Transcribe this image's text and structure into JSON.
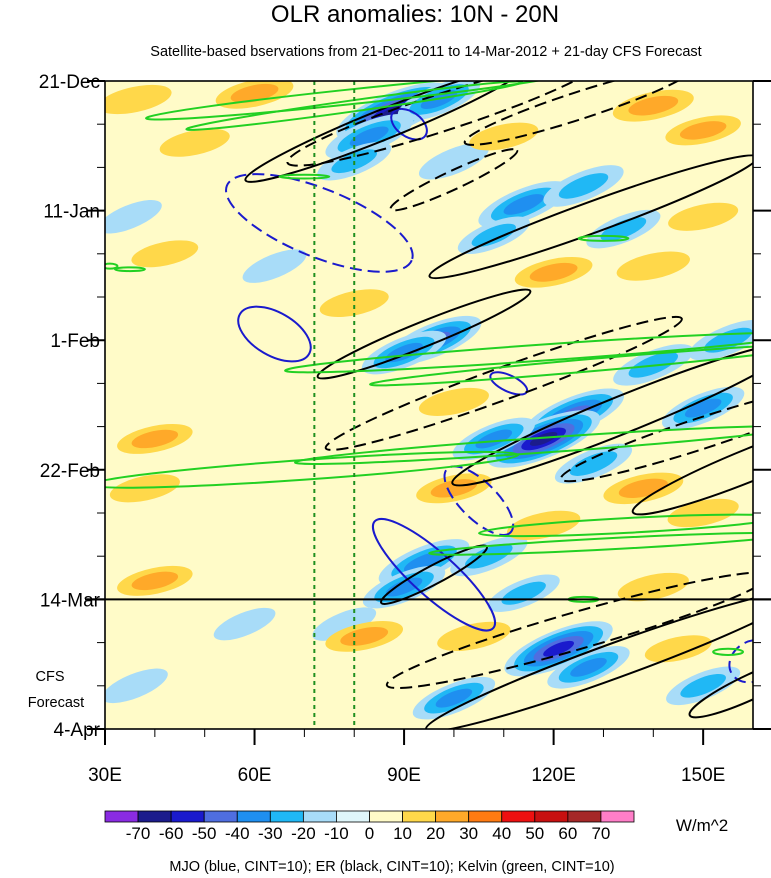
{
  "chart_data": {
    "type": "heatmap",
    "title": "OLR anomalies: 10N - 20N",
    "subtitle": "Satellite-based bservations from 21-Dec-2011 to 14-Mar-2012 + 21-day CFS Forecast",
    "xlabel": "",
    "ylabel": "",
    "x_range": [
      30,
      160
    ],
    "y_range_days": [
      0,
      105
    ],
    "observation_end_day": 84,
    "x_ticks": [
      {
        "lon": 30,
        "label": "30E"
      },
      {
        "lon": 60,
        "label": "60E"
      },
      {
        "lon": 90,
        "label": "90E"
      },
      {
        "lon": 120,
        "label": "120E"
      },
      {
        "lon": 150,
        "label": "150E"
      }
    ],
    "y_ticks": [
      {
        "day": 0,
        "label": "21-Dec"
      },
      {
        "day": 21,
        "label": "11-Jan"
      },
      {
        "day": 42,
        "label": "1-Feb"
      },
      {
        "day": 63,
        "label": "22-Feb"
      },
      {
        "day": 84,
        "label": "14-Mar"
      },
      {
        "day": 105,
        "label": "4-Apr"
      }
    ],
    "forecast_label": [
      "CFS",
      "Forecast"
    ],
    "reference_longitudes": [
      72,
      80
    ],
    "colorbar": {
      "unit": "W/m^2",
      "levels": [
        -70,
        -60,
        -50,
        -40,
        -30,
        -20,
        -10,
        0,
        10,
        20,
        30,
        40,
        50,
        60,
        70
      ],
      "colors": [
        "#8a2be2",
        "#1c1c8c",
        "#1a1acd",
        "#4f6ee0",
        "#1f8ff0",
        "#20b8f5",
        "#a8dcf8",
        "#dff6fa",
        "#fffbc8",
        "#ffd84a",
        "#ffa929",
        "#ff7b12",
        "#ee1010",
        "#c81010",
        "#a52828",
        "#ff7ec8"
      ]
    },
    "anomaly_blobs": [
      {
        "lon": 88,
        "day": 5,
        "value": -62
      },
      {
        "lon": 83,
        "day": 9,
        "value": -35
      },
      {
        "lon": 97,
        "day": 3,
        "value": -30
      },
      {
        "lon": 80,
        "day": 13,
        "value": -22
      },
      {
        "lon": 100,
        "day": 13,
        "value": -18
      },
      {
        "lon": 114,
        "day": 20,
        "value": -38
      },
      {
        "lon": 126,
        "day": 17,
        "value": -28
      },
      {
        "lon": 134,
        "day": 24,
        "value": -22
      },
      {
        "lon": 108,
        "day": 25,
        "value": -20
      },
      {
        "lon": 96,
        "day": 42,
        "value": -42
      },
      {
        "lon": 90,
        "day": 44,
        "value": -32
      },
      {
        "lon": 140,
        "day": 46,
        "value": -28
      },
      {
        "lon": 155,
        "day": 42,
        "value": -26
      },
      {
        "lon": 124,
        "day": 54,
        "value": -48
      },
      {
        "lon": 118,
        "day": 58,
        "value": -60
      },
      {
        "lon": 108,
        "day": 58,
        "value": -30
      },
      {
        "lon": 150,
        "day": 53,
        "value": -30
      },
      {
        "lon": 128,
        "day": 62,
        "value": -25
      },
      {
        "lon": 94,
        "day": 78,
        "value": -38
      },
      {
        "lon": 90,
        "day": 82,
        "value": -30
      },
      {
        "lon": 107,
        "day": 77,
        "value": -25
      },
      {
        "lon": 114,
        "day": 83,
        "value": -20
      },
      {
        "lon": 121,
        "day": 92,
        "value": -55
      },
      {
        "lon": 127,
        "day": 95,
        "value": -30
      },
      {
        "lon": 100,
        "day": 100,
        "value": -30
      },
      {
        "lon": 64,
        "day": 30,
        "value": -12
      },
      {
        "lon": 35,
        "day": 22,
        "value": -12
      },
      {
        "lon": 58,
        "day": 88,
        "value": -10
      },
      {
        "lon": 36,
        "day": 98,
        "value": -14
      },
      {
        "lon": 78,
        "day": 88,
        "value": -12
      },
      {
        "lon": 150,
        "day": 98,
        "value": -22
      },
      {
        "lon": 60,
        "day": 2,
        "value": 22
      },
      {
        "lon": 36,
        "day": 3,
        "value": 18
      },
      {
        "lon": 48,
        "day": 10,
        "value": 15
      },
      {
        "lon": 140,
        "day": 4,
        "value": 25
      },
      {
        "lon": 150,
        "day": 8,
        "value": 20
      },
      {
        "lon": 110,
        "day": 9,
        "value": 14
      },
      {
        "lon": 120,
        "day": 31,
        "value": 22
      },
      {
        "lon": 140,
        "day": 30,
        "value": 18
      },
      {
        "lon": 150,
        "day": 22,
        "value": 15
      },
      {
        "lon": 42,
        "day": 28,
        "value": 12
      },
      {
        "lon": 40,
        "day": 58,
        "value": 20
      },
      {
        "lon": 38,
        "day": 66,
        "value": 15
      },
      {
        "lon": 138,
        "day": 66,
        "value": 24
      },
      {
        "lon": 150,
        "day": 70,
        "value": 16
      },
      {
        "lon": 100,
        "day": 66,
        "value": 20
      },
      {
        "lon": 118,
        "day": 72,
        "value": 18
      },
      {
        "lon": 140,
        "day": 82,
        "value": 16
      },
      {
        "lon": 40,
        "day": 81,
        "value": 20
      },
      {
        "lon": 82,
        "day": 90,
        "value": 22
      },
      {
        "lon": 104,
        "day": 90,
        "value": 18
      },
      {
        "lon": 145,
        "day": 92,
        "value": 12
      },
      {
        "lon": 80,
        "day": 36,
        "value": 14
      },
      {
        "lon": 100,
        "day": 52,
        "value": 15
      }
    ],
    "contours": {
      "mjo": [
        {
          "lon": 91,
          "day": 7,
          "rlon": 4,
          "rday": 2,
          "angle": 35,
          "dashed": false
        },
        {
          "lon": 73,
          "day": 23,
          "rlon": 20,
          "rday": 5.5,
          "angle": 22,
          "dashed": true
        },
        {
          "lon": 64,
          "day": 41,
          "rlon": 8,
          "rday": 3.5,
          "angle": 30,
          "dashed": false
        },
        {
          "lon": 111,
          "day": 49,
          "rlon": 4,
          "rday": 1.3,
          "angle": 25,
          "dashed": false
        },
        {
          "lon": 105,
          "day": 68,
          "rlon": 9,
          "rday": 3,
          "angle": 45,
          "dashed": true
        },
        {
          "lon": 96,
          "day": 80,
          "rlon": 16,
          "rday": 3.5,
          "angle": 42,
          "dashed": false
        },
        {
          "lon": 160,
          "day": 94,
          "rlon": 4,
          "rday": 4,
          "angle": 60,
          "dashed": true
        }
      ],
      "er": [
        {
          "lon": 98,
          "day": 5,
          "rlon": 33,
          "rday": 3,
          "angle": -18,
          "dashed": true
        },
        {
          "lon": 86,
          "day": 7,
          "rlon": 30,
          "rday": 2.4,
          "angle": -22,
          "dashed": false
        },
        {
          "lon": 125,
          "day": 4,
          "rlon": 24,
          "rday": 2.2,
          "angle": -18,
          "dashed": true
        },
        {
          "lon": 100,
          "day": 16,
          "rlon": 14,
          "rday": 1.5,
          "angle": -25,
          "dashed": true
        },
        {
          "lon": 128,
          "day": 22,
          "rlon": 35,
          "rday": 2.5,
          "angle": -20,
          "dashed": false
        },
        {
          "lon": 94,
          "day": 41,
          "rlon": 23,
          "rday": 2,
          "angle": -22,
          "dashed": false
        },
        {
          "lon": 110,
          "day": 49,
          "rlon": 38,
          "rday": 2.6,
          "angle": -20,
          "dashed": true
        },
        {
          "lon": 134,
          "day": 54,
          "rlon": 37,
          "rday": 3,
          "angle": -22,
          "dashed": false
        },
        {
          "lon": 150,
          "day": 57,
          "rlon": 30,
          "rday": 2.5,
          "angle": -18,
          "dashed": true
        },
        {
          "lon": 160,
          "day": 62,
          "rlon": 26,
          "rday": 2.6,
          "angle": -22,
          "dashed": false
        },
        {
          "lon": 96,
          "day": 80,
          "rlon": 12,
          "rday": 1.5,
          "angle": -28,
          "dashed": false
        },
        {
          "lon": 125,
          "day": 89,
          "rlon": 40,
          "rday": 3,
          "angle": -16,
          "dashed": true
        },
        {
          "lon": 132,
          "day": 94,
          "rlon": 40,
          "rday": 2.8,
          "angle": -20,
          "dashed": false
        },
        {
          "lon": 160,
          "day": 98,
          "rlon": 14,
          "rday": 2,
          "angle": -25,
          "dashed": false
        }
      ],
      "kelvin": [
        {
          "lon": 80,
          "day": 2.5,
          "rlon": 42,
          "rday": 1.2,
          "angle": -6,
          "dashed": false
        },
        {
          "lon": 80,
          "day": 4,
          "rlon": 34,
          "rday": 0.9,
          "angle": -8,
          "dashed": false
        },
        {
          "lon": 70,
          "day": 15.5,
          "rlon": 5,
          "rday": 0.3,
          "angle": 0,
          "dashed": false
        },
        {
          "lon": 130,
          "day": 25.5,
          "rlon": 5,
          "rday": 0.4,
          "angle": 0,
          "dashed": false
        },
        {
          "lon": 118,
          "day": 44,
          "rlon": 52,
          "rday": 1.3,
          "angle": -4,
          "dashed": false
        },
        {
          "lon": 128,
          "day": 46,
          "rlon": 45,
          "rday": 1,
          "angle": -5,
          "dashed": false
        },
        {
          "lon": 70,
          "day": 63,
          "rlon": 43,
          "rday": 1.6,
          "angle": -4,
          "dashed": false
        },
        {
          "lon": 118,
          "day": 59,
          "rlon": 50,
          "rday": 1.2,
          "angle": -4,
          "dashed": false
        },
        {
          "lon": 135,
          "day": 72,
          "rlon": 30,
          "rday": 1.2,
          "angle": -3,
          "dashed": false
        },
        {
          "lon": 131,
          "day": 75,
          "rlon": 36,
          "rday": 0.9,
          "angle": -3,
          "dashed": false
        },
        {
          "lon": 126,
          "day": 84,
          "rlon": 3,
          "rday": 0.4,
          "angle": 0,
          "dashed": false
        },
        {
          "lon": 155,
          "day": 92.5,
          "rlon": 3,
          "rday": 0.5,
          "angle": 0,
          "dashed": false
        },
        {
          "lon": 31,
          "day": 30,
          "rlon": 1.5,
          "rday": 0.4,
          "angle": 0,
          "dashed": false
        },
        {
          "lon": 35,
          "day": 30.5,
          "rlon": 3,
          "rday": 0.3,
          "angle": 0,
          "dashed": false
        }
      ]
    },
    "legend_text": "MJO (blue, CINT=10); ER (black, CINT=10); Kelvin (green, CINT=10)",
    "contour_colors": {
      "mjo": "#1a1acd",
      "er": "#000000",
      "kelvin": "#22d022"
    },
    "background_fill": "#fffbc8"
  }
}
